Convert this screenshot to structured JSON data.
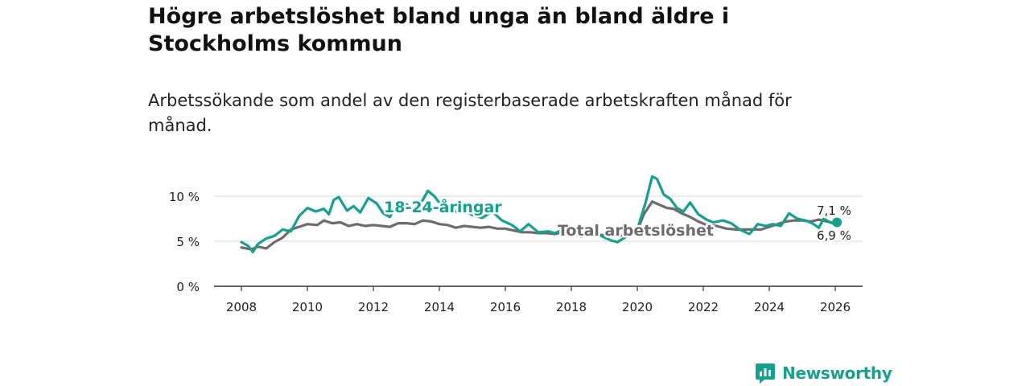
{
  "title": "Högre arbetslöshet bland unga än bland äldre i Stockholms kommun",
  "subtitle": "Arbetssökande som andel av den registerbaserade arbetskraften månad för månad.",
  "brand": {
    "name": "Newsworthy",
    "icon": "newsworthy-logo-icon",
    "color": "#14a28f"
  },
  "chart_data": {
    "type": "line",
    "title": "",
    "xlabel": "",
    "ylabel": "",
    "ylim": [
      0,
      11
    ],
    "xlim": [
      2007.5,
      2026.9
    ],
    "x_ticks": [
      2008,
      2010,
      2012,
      2014,
      2016,
      2018,
      2020,
      2022,
      2024,
      2026
    ],
    "x_tick_labels": [
      "2008",
      "2010",
      "2012",
      "2014",
      "2016",
      "2018",
      "2020",
      "2022",
      "2024",
      "2026"
    ],
    "y_ticks": [
      0,
      5,
      10
    ],
    "y_tick_labels": [
      "0 %",
      "5 %",
      "10 %"
    ],
    "grid": true,
    "series": [
      {
        "name": "18-24-åringar",
        "color": "#14a28f",
        "label": "18-24-åringar",
        "end_label": "7,1 %",
        "points": [
          [
            2008.0,
            4.9
          ],
          [
            2008.2,
            4.5
          ],
          [
            2008.35,
            3.8
          ],
          [
            2008.5,
            4.7
          ],
          [
            2008.75,
            5.3
          ],
          [
            2009.0,
            5.6
          ],
          [
            2009.25,
            6.3
          ],
          [
            2009.5,
            6.1
          ],
          [
            2009.75,
            7.8
          ],
          [
            2010.0,
            8.7
          ],
          [
            2010.25,
            8.3
          ],
          [
            2010.5,
            8.6
          ],
          [
            2010.65,
            8.0
          ],
          [
            2010.8,
            9.6
          ],
          [
            2010.95,
            9.9
          ],
          [
            2011.2,
            8.4
          ],
          [
            2011.4,
            8.9
          ],
          [
            2011.6,
            8.2
          ],
          [
            2011.85,
            9.8
          ],
          [
            2012.1,
            9.2
          ],
          [
            2012.3,
            8.1
          ],
          [
            2012.5,
            7.7
          ],
          [
            2012.75,
            9.4
          ],
          [
            2013.0,
            9.1
          ],
          [
            2013.25,
            8.3
          ],
          [
            2013.5,
            9.6
          ],
          [
            2013.65,
            10.6
          ],
          [
            2013.85,
            10.0
          ],
          [
            2014.1,
            8.8
          ],
          [
            2014.4,
            8.2
          ],
          [
            2014.7,
            8.5
          ],
          [
            2015.0,
            7.9
          ],
          [
            2015.3,
            7.6
          ],
          [
            2015.6,
            8.3
          ],
          [
            2015.9,
            7.3
          ],
          [
            2016.2,
            6.8
          ],
          [
            2016.45,
            6.1
          ],
          [
            2016.7,
            6.9
          ],
          [
            2017.0,
            6.0
          ],
          [
            2017.3,
            6.1
          ],
          [
            2017.5,
            5.9
          ],
          [
            2017.7,
            6.2
          ],
          [
            2018.0,
            6.0
          ],
          [
            2018.3,
            5.5
          ],
          [
            2018.6,
            5.9
          ],
          [
            2018.9,
            5.6
          ],
          [
            2019.2,
            5.1
          ],
          [
            2019.4,
            4.9
          ],
          [
            2019.7,
            5.6
          ],
          [
            2020.0,
            6.3
          ],
          [
            2020.25,
            9.3
          ],
          [
            2020.45,
            12.2
          ],
          [
            2020.6,
            11.9
          ],
          [
            2020.8,
            10.2
          ],
          [
            2021.0,
            9.7
          ],
          [
            2021.2,
            8.7
          ],
          [
            2021.4,
            8.3
          ],
          [
            2021.6,
            9.3
          ],
          [
            2021.85,
            8.0
          ],
          [
            2022.1,
            7.4
          ],
          [
            2022.3,
            7.1
          ],
          [
            2022.6,
            7.3
          ],
          [
            2022.85,
            7.0
          ],
          [
            2023.1,
            6.3
          ],
          [
            2023.4,
            5.8
          ],
          [
            2023.65,
            6.9
          ],
          [
            2023.9,
            6.7
          ],
          [
            2024.1,
            6.9
          ],
          [
            2024.35,
            6.7
          ],
          [
            2024.6,
            8.1
          ],
          [
            2024.85,
            7.5
          ],
          [
            2025.1,
            7.3
          ],
          [
            2025.3,
            7.0
          ],
          [
            2025.5,
            6.5
          ],
          [
            2025.65,
            7.5
          ],
          [
            2025.9,
            7.0
          ],
          [
            2026.05,
            7.1
          ]
        ]
      },
      {
        "name": "Total arbetslöshet",
        "color": "#6e6b6f",
        "label": "Total arbetslöshet",
        "end_label": "6,9 %",
        "points": [
          [
            2008.0,
            4.3
          ],
          [
            2008.3,
            4.1
          ],
          [
            2008.5,
            4.4
          ],
          [
            2008.75,
            4.2
          ],
          [
            2009.0,
            4.9
          ],
          [
            2009.25,
            5.4
          ],
          [
            2009.5,
            6.3
          ],
          [
            2009.75,
            6.6
          ],
          [
            2010.0,
            6.9
          ],
          [
            2010.3,
            6.8
          ],
          [
            2010.5,
            7.3
          ],
          [
            2010.75,
            7.0
          ],
          [
            2011.0,
            7.1
          ],
          [
            2011.25,
            6.7
          ],
          [
            2011.5,
            6.9
          ],
          [
            2011.75,
            6.7
          ],
          [
            2012.0,
            6.8
          ],
          [
            2012.25,
            6.7
          ],
          [
            2012.5,
            6.6
          ],
          [
            2012.75,
            7.0
          ],
          [
            2013.0,
            7.0
          ],
          [
            2013.25,
            6.9
          ],
          [
            2013.5,
            7.3
          ],
          [
            2013.75,
            7.2
          ],
          [
            2014.0,
            6.9
          ],
          [
            2014.25,
            6.8
          ],
          [
            2014.5,
            6.5
          ],
          [
            2014.75,
            6.7
          ],
          [
            2015.0,
            6.6
          ],
          [
            2015.25,
            6.5
          ],
          [
            2015.5,
            6.6
          ],
          [
            2015.75,
            6.4
          ],
          [
            2016.0,
            6.4
          ],
          [
            2016.25,
            6.2
          ],
          [
            2016.5,
            6.0
          ],
          [
            2016.75,
            6.0
          ],
          [
            2017.0,
            5.9
          ],
          [
            2017.25,
            5.9
          ],
          [
            2017.5,
            5.8
          ],
          [
            2017.75,
            6.0
          ],
          [
            2018.0,
            5.8
          ],
          [
            2018.25,
            5.7
          ],
          [
            2018.5,
            5.9
          ],
          [
            2018.75,
            5.7
          ],
          [
            2019.0,
            5.7
          ],
          [
            2019.25,
            5.6
          ],
          [
            2019.5,
            5.6
          ],
          [
            2019.75,
            5.8
          ],
          [
            2020.0,
            6.2
          ],
          [
            2020.2,
            8.0
          ],
          [
            2020.45,
            9.4
          ],
          [
            2020.7,
            9.0
          ],
          [
            2020.9,
            8.7
          ],
          [
            2021.1,
            8.6
          ],
          [
            2021.35,
            8.1
          ],
          [
            2021.6,
            7.7
          ],
          [
            2021.85,
            7.2
          ],
          [
            2022.1,
            6.8
          ],
          [
            2022.4,
            6.7
          ],
          [
            2022.7,
            6.4
          ],
          [
            2023.0,
            6.3
          ],
          [
            2023.25,
            6.3
          ],
          [
            2023.5,
            6.3
          ],
          [
            2023.75,
            6.3
          ],
          [
            2024.0,
            6.6
          ],
          [
            2024.25,
            6.9
          ],
          [
            2024.5,
            7.2
          ],
          [
            2024.75,
            7.3
          ],
          [
            2025.0,
            7.3
          ],
          [
            2025.25,
            7.2
          ],
          [
            2025.5,
            7.4
          ],
          [
            2025.75,
            7.2
          ],
          [
            2026.05,
            6.9
          ]
        ]
      }
    ]
  }
}
